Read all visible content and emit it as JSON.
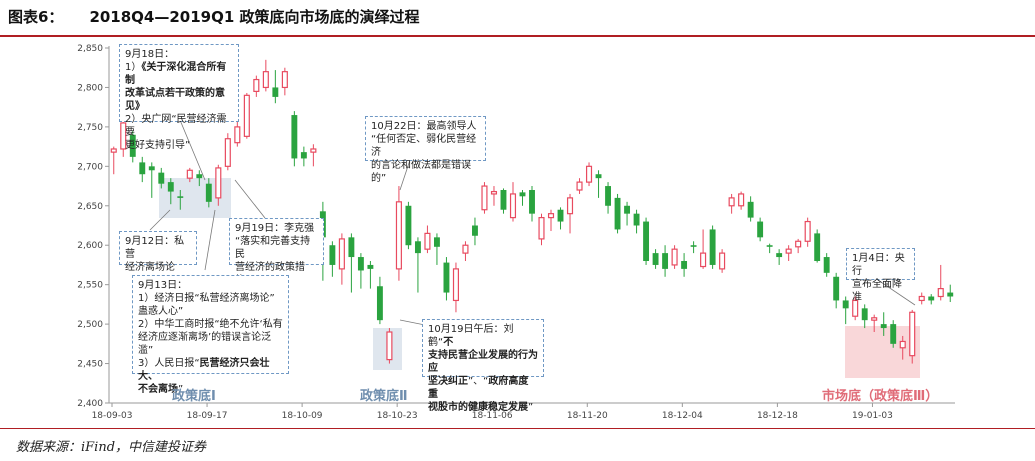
{
  "header": {
    "fig_label": "图表6：",
    "title": "2018Q4—2019Q1 政策底向市场底的演绎过程"
  },
  "source": "数据来源：iFind，中信建投证券",
  "chart_data": {
    "type": "candlestick",
    "ylim": [
      2400,
      2850
    ],
    "yticks": [
      "2,400",
      "2,450",
      "2,500",
      "2,550",
      "2,600",
      "2,650",
      "2,700",
      "2,750",
      "2,800",
      "2,850"
    ],
    "xticks": [
      {
        "label": "18-09-03",
        "idx": 0
      },
      {
        "label": "18-09-17",
        "idx": 10
      },
      {
        "label": "18-10-09",
        "idx": 20
      },
      {
        "label": "18-10-23",
        "idx": 30
      },
      {
        "label": "18-11-06",
        "idx": 40
      },
      {
        "label": "18-11-20",
        "idx": 50
      },
      {
        "label": "18-12-04",
        "idx": 60
      },
      {
        "label": "18-12-18",
        "idx": 70
      },
      {
        "label": "19-01-03",
        "idx": 80
      }
    ],
    "colors": {
      "up": "#e84a5f",
      "down": "#2aa33f"
    },
    "candles": [
      [
        2718,
        2722,
        2690,
        2725
      ],
      [
        2722,
        2755,
        2712,
        2760
      ],
      [
        2740,
        2712,
        2705,
        2745
      ],
      [
        2705,
        2690,
        2680,
        2712
      ],
      [
        2700,
        2695,
        2660,
        2705
      ],
      [
        2692,
        2678,
        2672,
        2698
      ],
      [
        2680,
        2668,
        2652,
        2685
      ],
      [
        2662,
        2660,
        2645,
        2670
      ],
      [
        2685,
        2695,
        2680,
        2698
      ],
      [
        2690,
        2685,
        2675,
        2695
      ],
      [
        2678,
        2655,
        2648,
        2685
      ],
      [
        2660,
        2698,
        2650,
        2702
      ],
      [
        2700,
        2735,
        2695,
        2742
      ],
      [
        2730,
        2750,
        2725,
        2758
      ],
      [
        2738,
        2790,
        2735,
        2793
      ],
      [
        2795,
        2810,
        2788,
        2815
      ],
      [
        2800,
        2820,
        2795,
        2835
      ],
      [
        2800,
        2788,
        2780,
        2822
      ],
      [
        2800,
        2820,
        2790,
        2825
      ],
      [
        2765,
        2710,
        2700,
        2770
      ],
      [
        2718,
        2710,
        2700,
        2725
      ],
      [
        2718,
        2722,
        2700,
        2728
      ],
      [
        2643,
        2610,
        2555,
        2655
      ],
      [
        2600,
        2575,
        2560,
        2605
      ],
      [
        2570,
        2608,
        2550,
        2615
      ],
      [
        2610,
        2585,
        2540,
        2615
      ],
      [
        2585,
        2568,
        2545,
        2590
      ],
      [
        2575,
        2570,
        2545,
        2580
      ],
      [
        2548,
        2505,
        2500,
        2560
      ],
      [
        2455,
        2490,
        2450,
        2495
      ],
      [
        2570,
        2655,
        2555,
        2675
      ],
      [
        2650,
        2600,
        2595,
        2655
      ],
      [
        2605,
        2590,
        2540,
        2610
      ],
      [
        2595,
        2615,
        2590,
        2625
      ],
      [
        2610,
        2598,
        2575,
        2615
      ],
      [
        2578,
        2540,
        2530,
        2585
      ],
      [
        2530,
        2570,
        2515,
        2578
      ],
      [
        2590,
        2600,
        2580,
        2605
      ],
      [
        2625,
        2612,
        2600,
        2635
      ],
      [
        2645,
        2675,
        2640,
        2680
      ],
      [
        2665,
        2668,
        2650,
        2675
      ],
      [
        2670,
        2645,
        2640,
        2672
      ],
      [
        2635,
        2665,
        2630,
        2680
      ],
      [
        2667,
        2662,
        2650,
        2670
      ],
      [
        2670,
        2640,
        2630,
        2675
      ],
      [
        2608,
        2635,
        2600,
        2640
      ],
      [
        2635,
        2640,
        2618,
        2645
      ],
      [
        2645,
        2630,
        2620,
        2648
      ],
      [
        2640,
        2660,
        2615,
        2665
      ],
      [
        2670,
        2680,
        2665,
        2685
      ],
      [
        2680,
        2700,
        2675,
        2705
      ],
      [
        2690,
        2685,
        2660,
        2695
      ],
      [
        2675,
        2650,
        2640,
        2680
      ],
      [
        2660,
        2620,
        2615,
        2665
      ],
      [
        2650,
        2640,
        2625,
        2655
      ],
      [
        2640,
        2625,
        2615,
        2645
      ],
      [
        2630,
        2580,
        2575,
        2635
      ],
      [
        2590,
        2575,
        2570,
        2595
      ],
      [
        2590,
        2570,
        2560,
        2600
      ],
      [
        2575,
        2595,
        2570,
        2600
      ],
      [
        2580,
        2570,
        2560,
        2590
      ],
      [
        2600,
        2598,
        2590,
        2605
      ],
      [
        2573,
        2590,
        2570,
        2620
      ],
      [
        2620,
        2575,
        2570,
        2625
      ],
      [
        2570,
        2590,
        2565,
        2595
      ],
      [
        2650,
        2660,
        2640,
        2665
      ],
      [
        2650,
        2665,
        2645,
        2668
      ],
      [
        2655,
        2635,
        2630,
        2662
      ],
      [
        2630,
        2610,
        2605,
        2635
      ],
      [
        2600,
        2598,
        2590,
        2602
      ],
      [
        2590,
        2585,
        2575,
        2595
      ],
      [
        2590,
        2595,
        2580,
        2600
      ],
      [
        2598,
        2605,
        2590,
        2608
      ],
      [
        2605,
        2630,
        2598,
        2635
      ],
      [
        2615,
        2580,
        2578,
        2620
      ],
      [
        2585,
        2565,
        2560,
        2590
      ],
      [
        2560,
        2530,
        2520,
        2565
      ],
      [
        2530,
        2520,
        2500,
        2535
      ],
      [
        2510,
        2530,
        2505,
        2535
      ],
      [
        2520,
        2505,
        2495,
        2525
      ],
      [
        2505,
        2508,
        2490,
        2512
      ],
      [
        2500,
        2495,
        2485,
        2515
      ],
      [
        2500,
        2475,
        2470,
        2505
      ],
      [
        2470,
        2478,
        2455,
        2485
      ],
      [
        2460,
        2515,
        2450,
        2518
      ],
      [
        2530,
        2535,
        2525,
        2540
      ],
      [
        2535,
        2530,
        2525,
        2538
      ],
      [
        2535,
        2545,
        2530,
        2575
      ],
      [
        2540,
        2535,
        2528,
        2550
      ]
    ],
    "zone_labels": [
      "政策底Ⅰ",
      "政策底Ⅱ",
      "市场底（政策底Ⅲ）"
    ]
  },
  "annotations": {
    "a1": {
      "l1": "9月18日：",
      "l2": "1）",
      "l2b": "《关于深化混合所有制",
      "l3b": "改革试点若干政策的意见》",
      "l4": "2）央广网“民营经济需要",
      "l5": "更好支持引导”"
    },
    "a2": {
      "l1": "9月12日：私营",
      "l2": "经济离场论"
    },
    "a3": {
      "l1": "9月19日：李克强",
      "l2": "“落实和完善支持民",
      "l3": "营经济的政策措施”"
    },
    "a4": {
      "l1": "9月13日：",
      "l2": "1）经济日报“私营经济离场论”",
      "l3": "蛊惑人心”",
      "l4": "2）中华工商时报“绝不允许‘私有",
      "l5": "经济应逐渐离场’的错误言论泛滥”",
      "l6a": "3）人民日报“",
      "l6b": "民营经济只会壮大、",
      "l7b": "不会离场",
      "l7c": "”"
    },
    "a5": {
      "l1": "10月22日：最高领导人",
      "l2": "“任何否定、弱化民营经济",
      "l3": "的言论和做法都是错误的”"
    },
    "a6": {
      "l1a": "10月19日午后：刘鹤“",
      "l1b": "不",
      "l2b": "支持民营企业发展的行为应",
      "l3b": "坚决纠正",
      "l3c": "”、“",
      "l3d": "政府高度重",
      "l4b": "视股市的健康稳定发展",
      "l4c": "”"
    },
    "a7": {
      "l1": "1月4日：央行",
      "l2": "宣布全面降准"
    }
  }
}
